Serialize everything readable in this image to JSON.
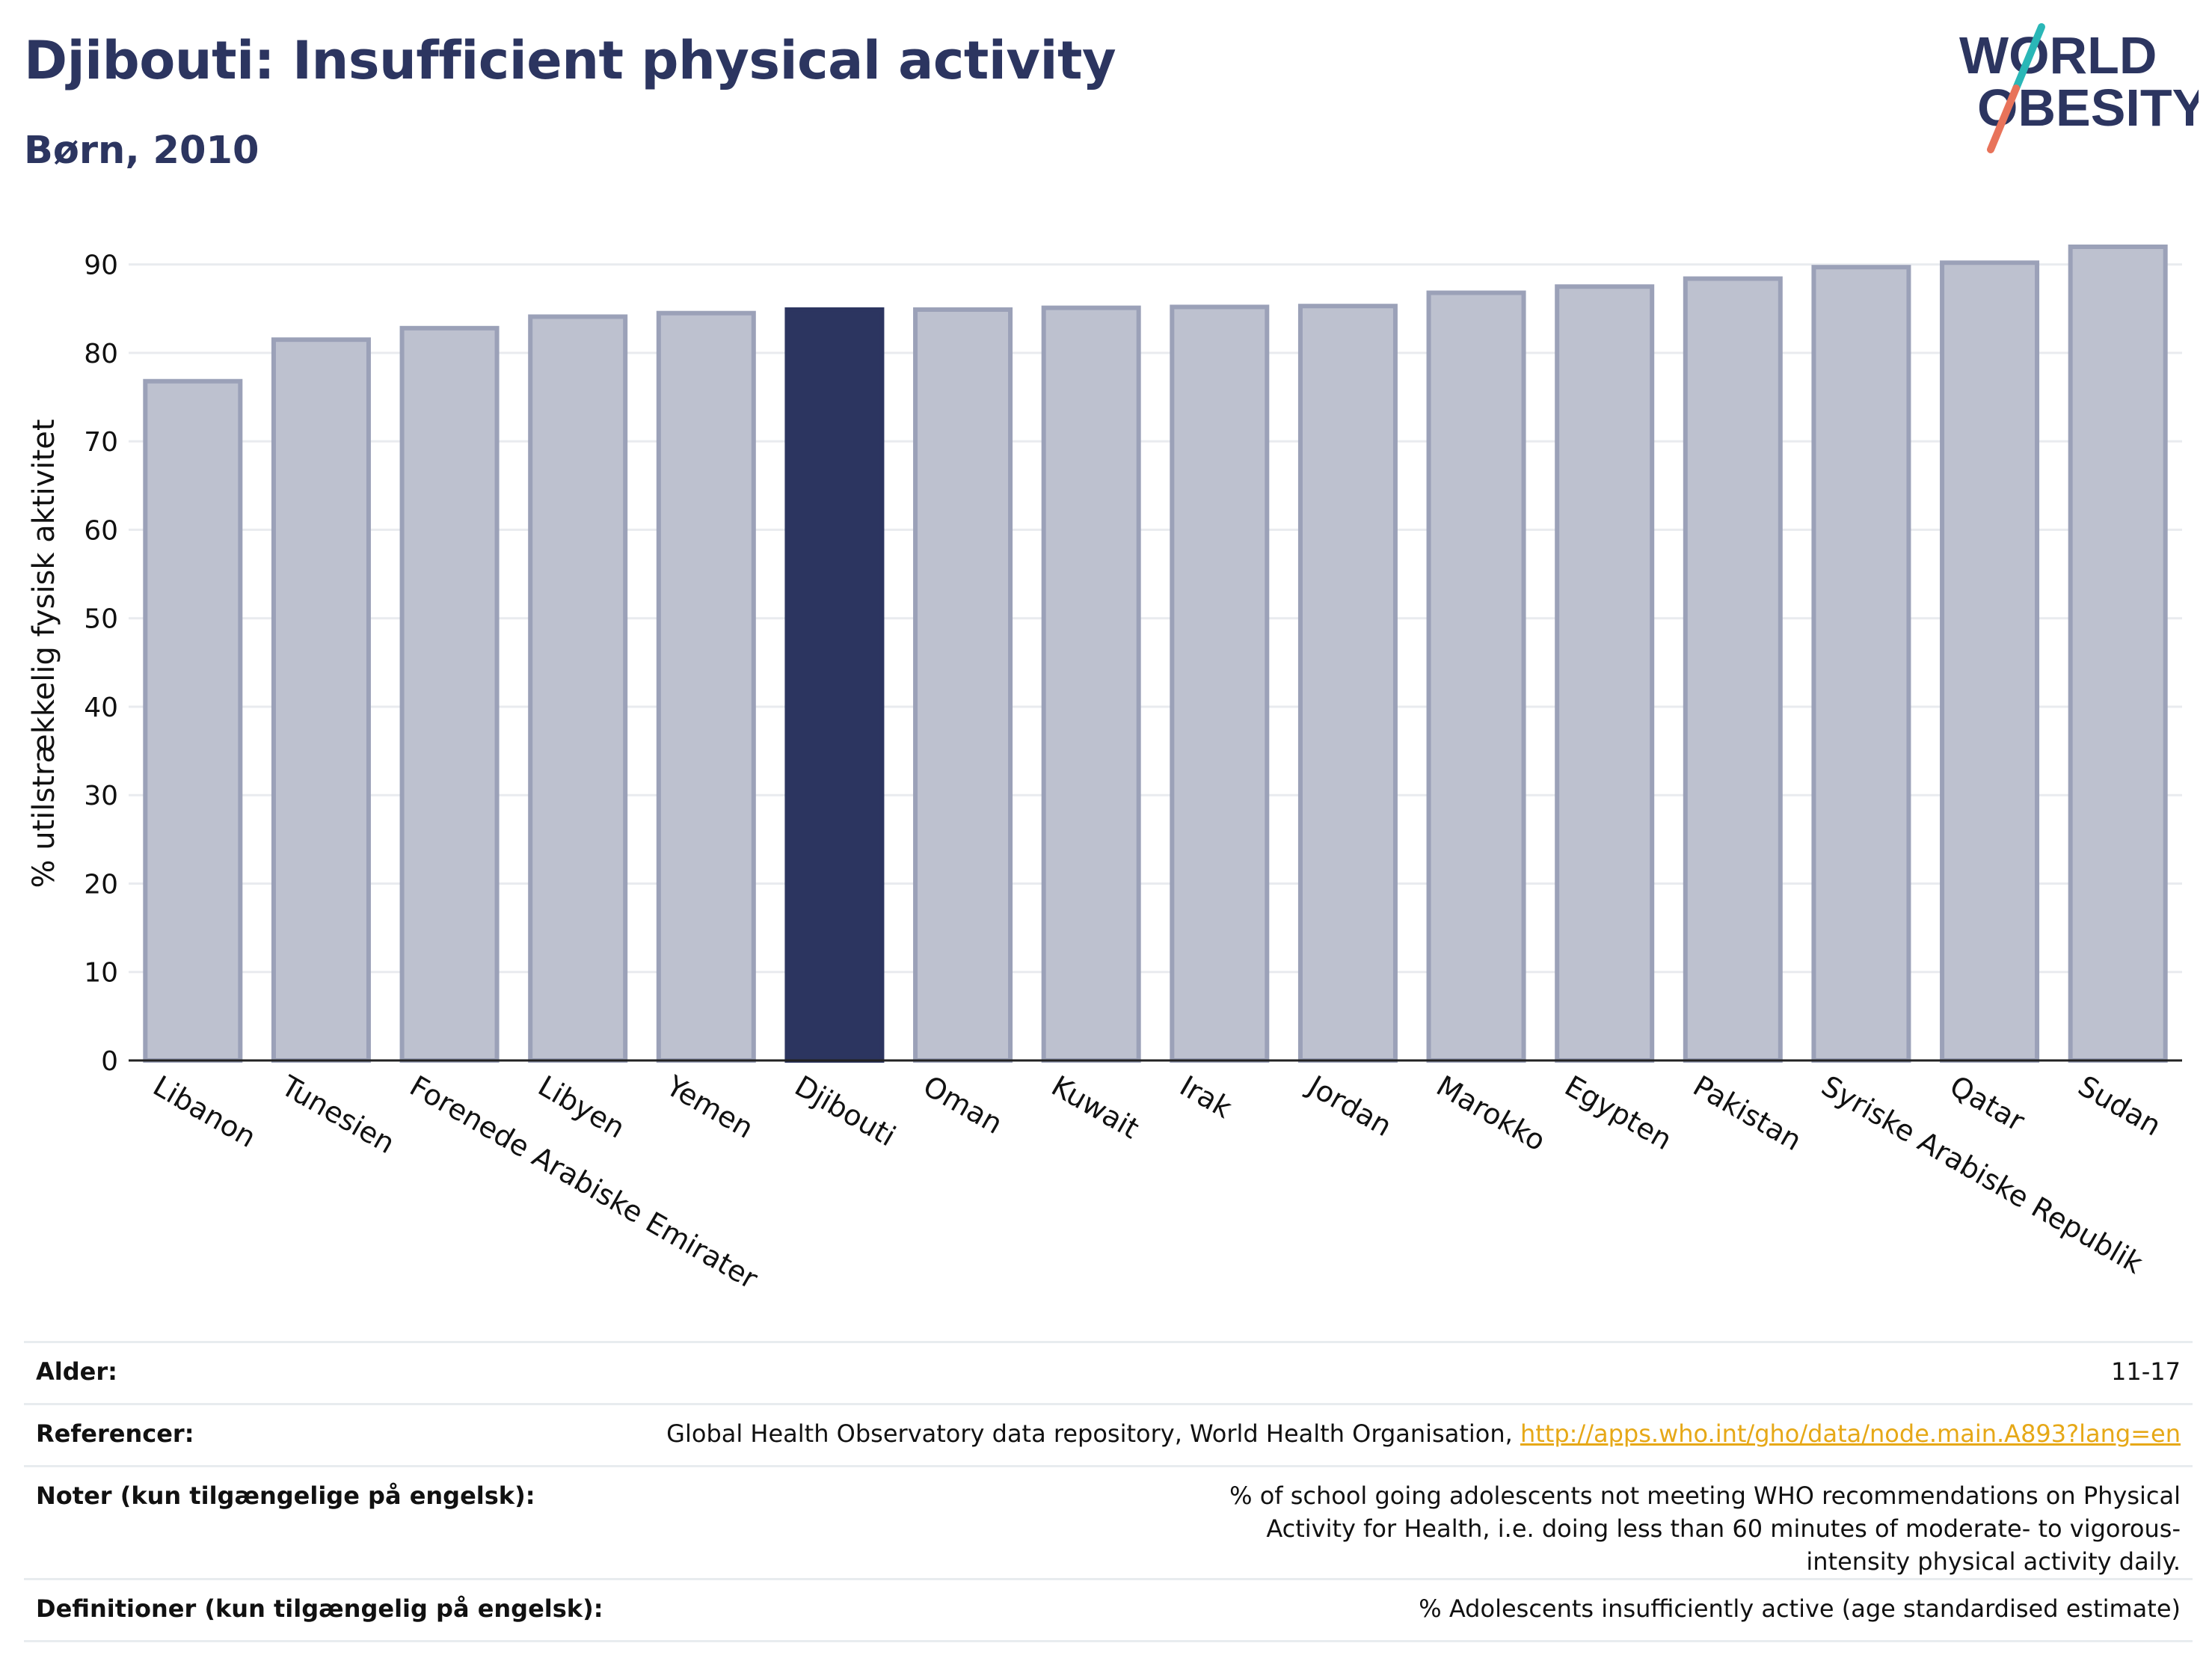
{
  "header": {
    "title": "Djibouti: Insufficient physical activity",
    "subtitle": "Børn, 2010"
  },
  "logo": {
    "line1": "WORLD",
    "line2": "OBESITY",
    "colors": {
      "text": "#2c3560",
      "slash_top": "#2ab7b7",
      "slash_bottom": "#e8735a"
    }
  },
  "colors": {
    "bar": "#bdc1cf",
    "bar_outline": "#9ba1b8",
    "highlight": "#2c3560",
    "grid": "#e9ebef",
    "axis": "#222222",
    "link": "#e6a817"
  },
  "chart_data": {
    "type": "bar",
    "title": "",
    "xlabel": "",
    "ylabel": "% utilstrækkelig fysisk aktivitet",
    "ylim": [
      0,
      92
    ],
    "yticks": [
      0,
      10,
      20,
      30,
      40,
      50,
      60,
      70,
      80,
      90
    ],
    "grid": true,
    "highlight": "Djibouti",
    "categories": [
      "Libanon",
      "Tunesien",
      "Forenede Arabiske Emirater",
      "Libyen",
      "Yemen",
      "Djibouti",
      "Oman",
      "Kuwait",
      "Irak",
      "Jordan",
      "Marokko",
      "Egypten",
      "Pakistan",
      "Syriske Arabiske Republik",
      "Qatar",
      "Sudan"
    ],
    "values": [
      76.8,
      81.5,
      82.8,
      84.1,
      84.5,
      84.9,
      84.9,
      85.1,
      85.2,
      85.3,
      86.8,
      87.5,
      88.4,
      89.7,
      90.2,
      92.0
    ]
  },
  "meta": [
    {
      "label": "Alder:",
      "value": "11-17"
    },
    {
      "label": "Referencer:",
      "value": "Global Health Observatory data repository, World Health Organisation, ",
      "link": "http://apps.who.int/gho/data/node.main.A893?lang=en"
    },
    {
      "label": "Noter (kun tilgængelige på engelsk):",
      "value": "% of school going adolescents not meeting WHO recommendations on Physical Activity for Health, i.e. doing less than 60 minutes of moderate- to vigorous-intensity physical activity daily."
    },
    {
      "label": "Definitioner (kun tilgængelig på engelsk):",
      "value": "% Adolescents insufficiently active (age standardised estimate)"
    }
  ]
}
